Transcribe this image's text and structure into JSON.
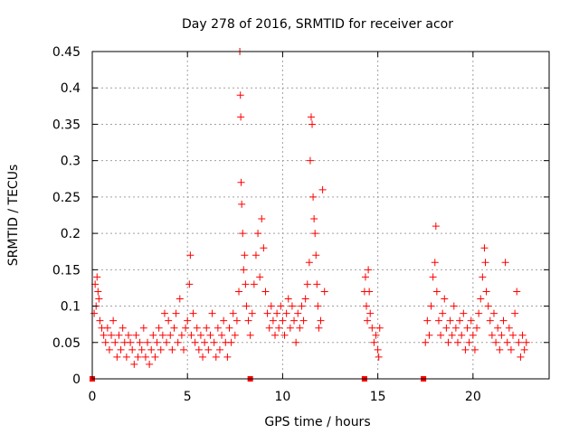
{
  "chart_data": {
    "type": "scatter",
    "title": "Day 278 of 2016, SRMTID for receiver acor",
    "xlabel": "GPS time / hours",
    "ylabel": "SRMTID / TECUs",
    "xlim": [
      0,
      24
    ],
    "ylim": [
      0,
      0.45
    ],
    "x_ticks": [
      0,
      5,
      10,
      15,
      20
    ],
    "x_tick_labels": [
      "0",
      "5",
      "10",
      "15",
      "20"
    ],
    "y_ticks": [
      0,
      0.05,
      0.1,
      0.15,
      0.2,
      0.25,
      0.3,
      0.35,
      0.4,
      0.45
    ],
    "y_tick_labels": [
      "0",
      "0.05",
      "0.1",
      "0.15",
      "0.2",
      "0.25",
      "0.3",
      "0.35",
      "0.4",
      "0.45"
    ],
    "grid": true,
    "marker_color": "#ff0000",
    "series": [
      {
        "name": "SRMTID",
        "marker": "plus",
        "points": [
          [
            0.1,
            0.09
          ],
          [
            0.15,
            0.13
          ],
          [
            0.2,
            0.1
          ],
          [
            0.25,
            0.14
          ],
          [
            0.3,
            0.12
          ],
          [
            0.35,
            0.11
          ],
          [
            0.4,
            0.08
          ],
          [
            0.5,
            0.07
          ],
          [
            0.6,
            0.06
          ],
          [
            0.7,
            0.05
          ],
          [
            0.8,
            0.07
          ],
          [
            0.9,
            0.04
          ],
          [
            1.0,
            0.06
          ],
          [
            1.1,
            0.08
          ],
          [
            1.2,
            0.05
          ],
          [
            1.3,
            0.03
          ],
          [
            1.4,
            0.06
          ],
          [
            1.5,
            0.04
          ],
          [
            1.6,
            0.07
          ],
          [
            1.7,
            0.05
          ],
          [
            1.8,
            0.03
          ],
          [
            1.9,
            0.06
          ],
          [
            2.0,
            0.05
          ],
          [
            2.1,
            0.04
          ],
          [
            2.2,
            0.02
          ],
          [
            2.3,
            0.06
          ],
          [
            2.4,
            0.03
          ],
          [
            2.5,
            0.05
          ],
          [
            2.6,
            0.04
          ],
          [
            2.7,
            0.07
          ],
          [
            2.8,
            0.03
          ],
          [
            2.9,
            0.05
          ],
          [
            3.0,
            0.02
          ],
          [
            3.1,
            0.04
          ],
          [
            3.2,
            0.06
          ],
          [
            3.3,
            0.03
          ],
          [
            3.4,
            0.05
          ],
          [
            3.5,
            0.07
          ],
          [
            3.6,
            0.04
          ],
          [
            3.7,
            0.06
          ],
          [
            3.8,
            0.09
          ],
          [
            3.9,
            0.05
          ],
          [
            4.0,
            0.08
          ],
          [
            4.1,
            0.06
          ],
          [
            4.2,
            0.04
          ],
          [
            4.3,
            0.07
          ],
          [
            4.4,
            0.09
          ],
          [
            4.5,
            0.05
          ],
          [
            4.6,
            0.11
          ],
          [
            4.7,
            0.06
          ],
          [
            4.8,
            0.04
          ],
          [
            4.9,
            0.07
          ],
          [
            5.0,
            0.08
          ],
          [
            5.1,
            0.13
          ],
          [
            5.15,
            0.17
          ],
          [
            5.2,
            0.06
          ],
          [
            5.3,
            0.09
          ],
          [
            5.4,
            0.05
          ],
          [
            5.5,
            0.07
          ],
          [
            5.6,
            0.04
          ],
          [
            5.7,
            0.06
          ],
          [
            5.8,
            0.03
          ],
          [
            5.9,
            0.05
          ],
          [
            6.0,
            0.07
          ],
          [
            6.1,
            0.04
          ],
          [
            6.2,
            0.06
          ],
          [
            6.3,
            0.09
          ],
          [
            6.4,
            0.05
          ],
          [
            6.5,
            0.03
          ],
          [
            6.6,
            0.07
          ],
          [
            6.7,
            0.04
          ],
          [
            6.8,
            0.06
          ],
          [
            6.9,
            0.08
          ],
          [
            7.0,
            0.05
          ],
          [
            7.1,
            0.03
          ],
          [
            7.2,
            0.07
          ],
          [
            7.3,
            0.05
          ],
          [
            7.4,
            0.09
          ],
          [
            7.5,
            0.06
          ],
          [
            7.6,
            0.08
          ],
          [
            7.7,
            0.12
          ],
          [
            7.75,
            0.45
          ],
          [
            7.78,
            0.39
          ],
          [
            7.8,
            0.36
          ],
          [
            7.82,
            0.27
          ],
          [
            7.85,
            0.24
          ],
          [
            7.9,
            0.2
          ],
          [
            7.95,
            0.15
          ],
          [
            8.0,
            0.17
          ],
          [
            8.05,
            0.13
          ],
          [
            8.1,
            0.1
          ],
          [
            8.2,
            0.08
          ],
          [
            8.3,
            0.06
          ],
          [
            8.4,
            0.09
          ],
          [
            8.5,
            0.13
          ],
          [
            8.6,
            0.17
          ],
          [
            8.7,
            0.2
          ],
          [
            8.8,
            0.14
          ],
          [
            8.9,
            0.22
          ],
          [
            9.0,
            0.18
          ],
          [
            9.1,
            0.12
          ],
          [
            9.2,
            0.09
          ],
          [
            9.3,
            0.07
          ],
          [
            9.4,
            0.1
          ],
          [
            9.5,
            0.08
          ],
          [
            9.6,
            0.06
          ],
          [
            9.7,
            0.09
          ],
          [
            9.8,
            0.07
          ],
          [
            9.9,
            0.1
          ],
          [
            10.0,
            0.08
          ],
          [
            10.1,
            0.06
          ],
          [
            10.2,
            0.09
          ],
          [
            10.3,
            0.11
          ],
          [
            10.4,
            0.07
          ],
          [
            10.5,
            0.1
          ],
          [
            10.6,
            0.08
          ],
          [
            10.7,
            0.05
          ],
          [
            10.8,
            0.09
          ],
          [
            10.9,
            0.07
          ],
          [
            11.0,
            0.1
          ],
          [
            11.1,
            0.08
          ],
          [
            11.2,
            0.11
          ],
          [
            11.3,
            0.13
          ],
          [
            11.4,
            0.16
          ],
          [
            11.45,
            0.3
          ],
          [
            11.5,
            0.36
          ],
          [
            11.55,
            0.35
          ],
          [
            11.6,
            0.25
          ],
          [
            11.65,
            0.22
          ],
          [
            11.7,
            0.2
          ],
          [
            11.75,
            0.17
          ],
          [
            11.8,
            0.13
          ],
          [
            11.85,
            0.1
          ],
          [
            11.9,
            0.07
          ],
          [
            12.0,
            0.08
          ],
          [
            12.1,
            0.26
          ],
          [
            12.2,
            0.12
          ],
          [
            14.3,
            0.12
          ],
          [
            14.35,
            0.14
          ],
          [
            14.4,
            0.1
          ],
          [
            14.45,
            0.08
          ],
          [
            14.5,
            0.15
          ],
          [
            14.55,
            0.12
          ],
          [
            14.6,
            0.09
          ],
          [
            14.7,
            0.07
          ],
          [
            14.8,
            0.05
          ],
          [
            14.9,
            0.06
          ],
          [
            15.0,
            0.04
          ],
          [
            15.05,
            0.03
          ],
          [
            15.1,
            0.07
          ],
          [
            17.5,
            0.05
          ],
          [
            17.6,
            0.08
          ],
          [
            17.7,
            0.06
          ],
          [
            17.8,
            0.1
          ],
          [
            17.9,
            0.14
          ],
          [
            18.0,
            0.16
          ],
          [
            18.05,
            0.21
          ],
          [
            18.1,
            0.12
          ],
          [
            18.2,
            0.08
          ],
          [
            18.3,
            0.06
          ],
          [
            18.4,
            0.09
          ],
          [
            18.5,
            0.11
          ],
          [
            18.6,
            0.07
          ],
          [
            18.7,
            0.05
          ],
          [
            18.8,
            0.08
          ],
          [
            18.9,
            0.06
          ],
          [
            19.0,
            0.1
          ],
          [
            19.1,
            0.07
          ],
          [
            19.2,
            0.05
          ],
          [
            19.3,
            0.08
          ],
          [
            19.4,
            0.06
          ],
          [
            19.5,
            0.09
          ],
          [
            19.6,
            0.04
          ],
          [
            19.7,
            0.07
          ],
          [
            19.8,
            0.05
          ],
          [
            19.9,
            0.08
          ],
          [
            20.0,
            0.06
          ],
          [
            20.1,
            0.04
          ],
          [
            20.2,
            0.07
          ],
          [
            20.3,
            0.09
          ],
          [
            20.4,
            0.11
          ],
          [
            20.5,
            0.14
          ],
          [
            20.6,
            0.18
          ],
          [
            20.65,
            0.16
          ],
          [
            20.7,
            0.12
          ],
          [
            20.8,
            0.1
          ],
          [
            20.9,
            0.08
          ],
          [
            21.0,
            0.06
          ],
          [
            21.1,
            0.09
          ],
          [
            21.2,
            0.05
          ],
          [
            21.3,
            0.07
          ],
          [
            21.4,
            0.04
          ],
          [
            21.5,
            0.06
          ],
          [
            21.6,
            0.08
          ],
          [
            21.7,
            0.16
          ],
          [
            21.8,
            0.05
          ],
          [
            21.9,
            0.07
          ],
          [
            22.0,
            0.04
          ],
          [
            22.1,
            0.06
          ],
          [
            22.2,
            0.09
          ],
          [
            22.3,
            0.12
          ],
          [
            22.4,
            0.05
          ],
          [
            22.5,
            0.03
          ],
          [
            22.6,
            0.06
          ],
          [
            22.7,
            0.04
          ],
          [
            22.8,
            0.05
          ]
        ]
      },
      {
        "name": "zero markers",
        "marker": "square",
        "points": [
          [
            0.0,
            0
          ],
          [
            8.3,
            0
          ],
          [
            14.3,
            0
          ],
          [
            17.4,
            0
          ]
        ]
      }
    ]
  }
}
